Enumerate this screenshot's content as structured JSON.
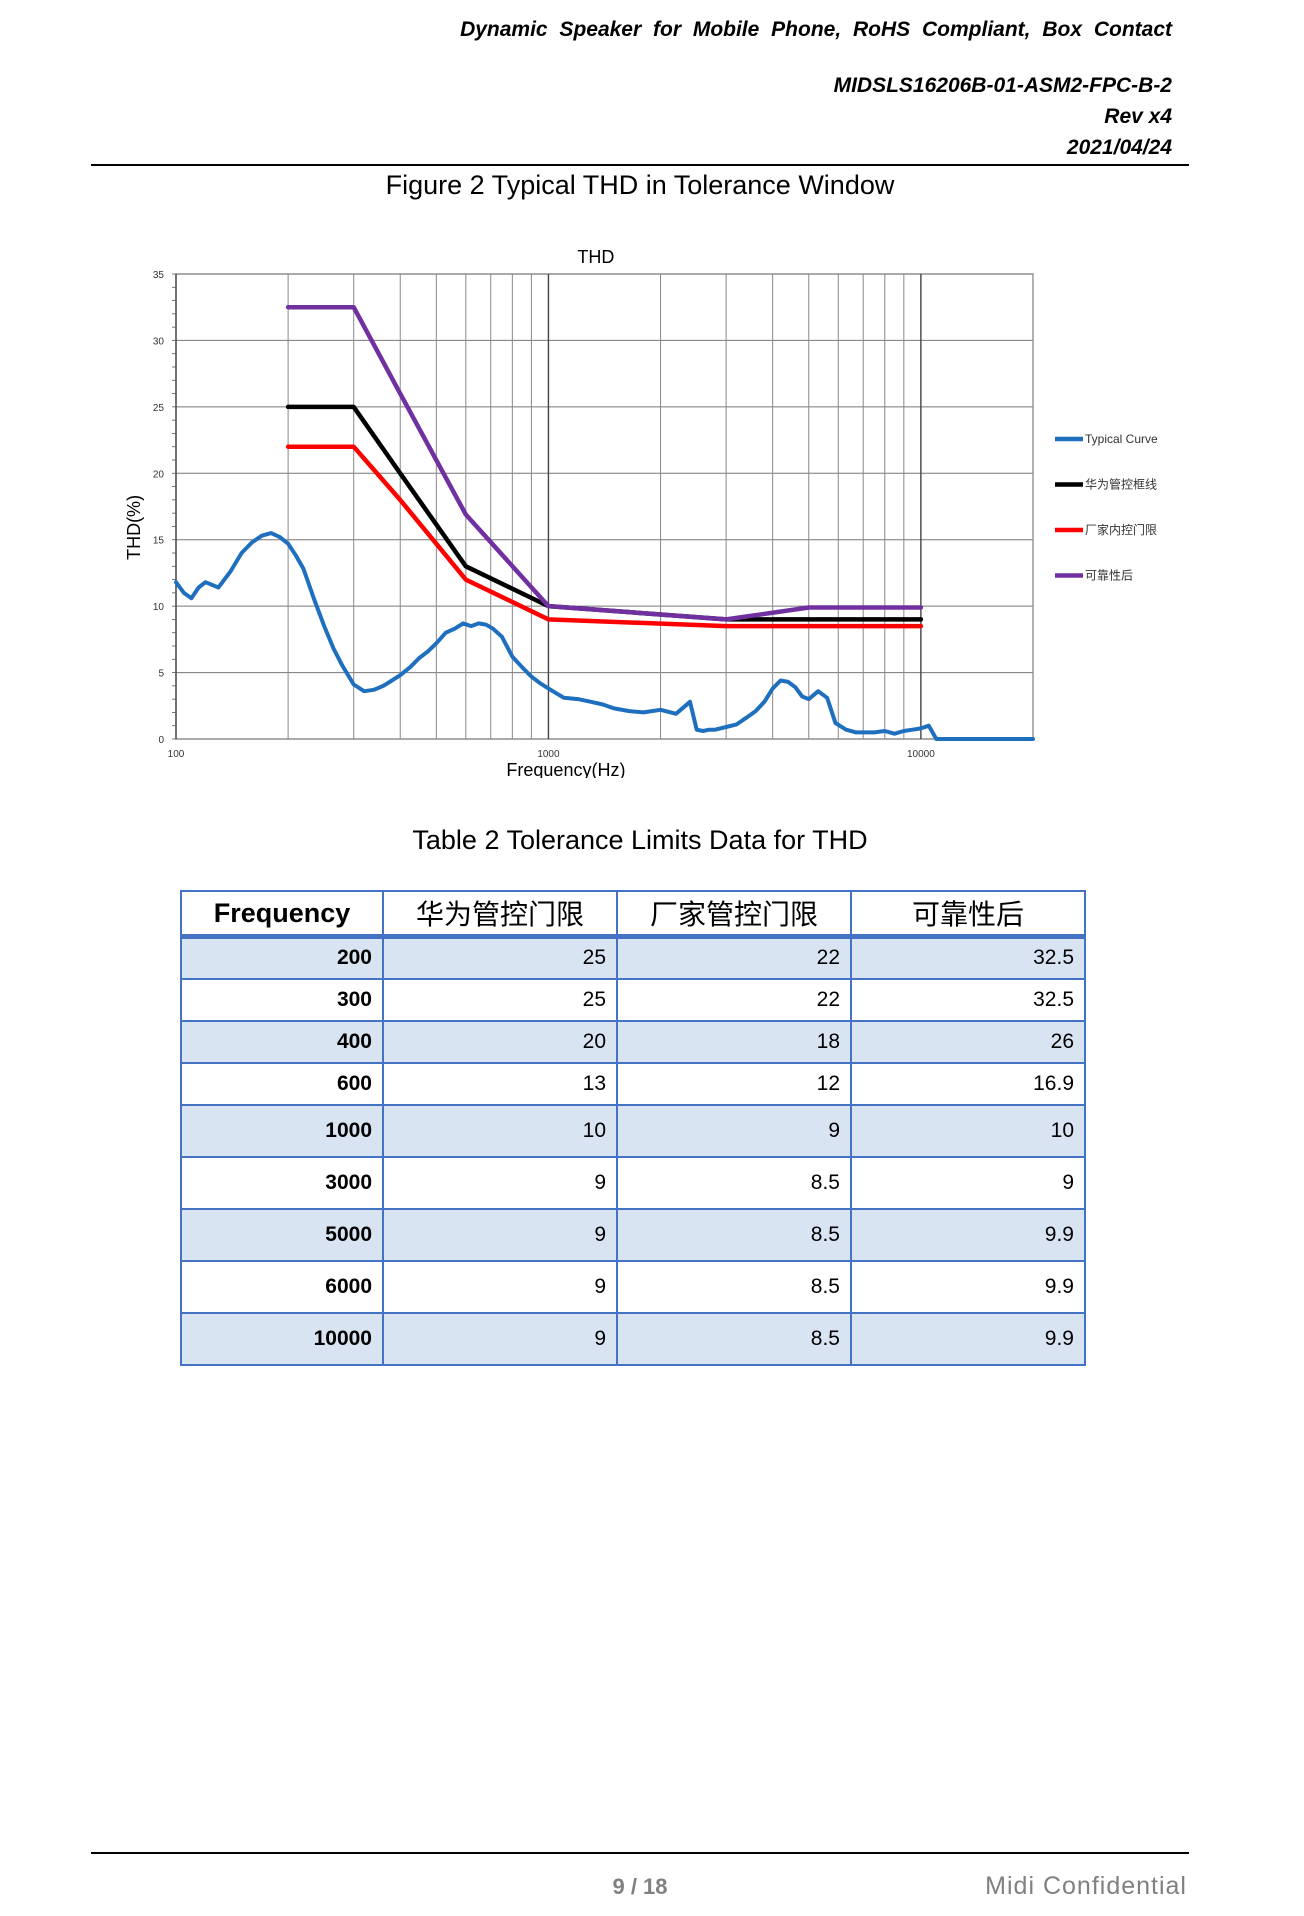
{
  "header": {
    "product": "Dynamic Speaker for Mobile Phone, RoHS Compliant, Box Contact",
    "part_number": "MIDSLS16206B-01-ASM2-FPC-B-2",
    "revision": "Rev x4",
    "date": "2021/04/24"
  },
  "figure_caption": "Figure 2 Typical THD in Tolerance Window",
  "chart_data": {
    "type": "line",
    "title": "THD",
    "xlabel": "Frequency(Hz)",
    "ylabel": "THD(%)",
    "x_scale": "log",
    "xlim": [
      100,
      20000
    ],
    "ylim": [
      0,
      35
    ],
    "x_tick_labels": [
      "100",
      "1000",
      "10000"
    ],
    "y_tick_labels": [
      "0",
      "5",
      "10",
      "15",
      "20",
      "25",
      "30",
      "35"
    ],
    "grid": true,
    "legend_position": "right",
    "series": [
      {
        "name": "Typical Curve",
        "color": "#1f6fbf",
        "x": [
          100,
          105,
          110,
          115,
          120,
          130,
          140,
          150,
          160,
          170,
          180,
          190,
          200,
          210,
          220,
          235,
          250,
          265,
          280,
          300,
          320,
          340,
          360,
          380,
          400,
          425,
          450,
          475,
          500,
          530,
          560,
          590,
          620,
          650,
          680,
          710,
          750,
          800,
          850,
          900,
          950,
          1000,
          1100,
          1200,
          1300,
          1400,
          1500,
          1650,
          1800,
          2000,
          2200,
          2400,
          2500,
          2600,
          2700,
          2800,
          3000,
          3200,
          3400,
          3600,
          3800,
          4000,
          4200,
          4400,
          4600,
          4800,
          5000,
          5300,
          5600,
          5900,
          6300,
          6700,
          7000,
          7500,
          8000,
          8500,
          9000,
          9500,
          10000,
          10500,
          11000,
          12000,
          14000,
          17000,
          20000
        ],
        "y": [
          11.8,
          11,
          10.6,
          11.4,
          11.8,
          11.4,
          12.6,
          14,
          14.8,
          15.3,
          15.5,
          15.2,
          14.7,
          13.8,
          12.8,
          10.5,
          8.5,
          6.8,
          5.5,
          4.1,
          3.6,
          3.7,
          4,
          4.4,
          4.8,
          5.4,
          6.1,
          6.6,
          7.2,
          8,
          8.3,
          8.7,
          8.5,
          8.7,
          8.6,
          8.3,
          7.7,
          6.2,
          5.4,
          4.7,
          4.2,
          3.8,
          3.1,
          3,
          2.8,
          2.6,
          2.3,
          2.1,
          2,
          2.2,
          1.9,
          2.8,
          0.7,
          0.6,
          0.7,
          0.7,
          0.9,
          1.1,
          1.6,
          2.1,
          2.8,
          3.8,
          4.4,
          4.3,
          3.9,
          3.2,
          3,
          3.6,
          3.1,
          1.2,
          0.7,
          0.5,
          0.5,
          0.5,
          0.6,
          0.4,
          0.6,
          0.7,
          0.8,
          1,
          0,
          0,
          0,
          0,
          0
        ]
      },
      {
        "name": "华为管控框线",
        "color": "#000000",
        "x": [
          200,
          300,
          400,
          600,
          1000,
          3000,
          5000,
          6000,
          10000
        ],
        "y": [
          25,
          25,
          20,
          13,
          10,
          9,
          9,
          9,
          9
        ]
      },
      {
        "name": "厂家内控门限",
        "color": "#ff0000",
        "x": [
          200,
          300,
          400,
          600,
          1000,
          3000,
          5000,
          6000,
          10000
        ],
        "y": [
          22,
          22,
          18,
          12,
          9,
          8.5,
          8.5,
          8.5,
          8.5
        ]
      },
      {
        "name": "可靠性后",
        "color": "#7030a0",
        "x": [
          200,
          300,
          400,
          600,
          1000,
          3000,
          5000,
          6000,
          10000
        ],
        "y": [
          32.5,
          32.5,
          26,
          16.9,
          10,
          9,
          9.9,
          9.9,
          9.9
        ]
      }
    ]
  },
  "table_caption": "Table 2 Tolerance Limits Data for THD",
  "table": {
    "headers": [
      "Frequency",
      "华为管控门限",
      "厂家管控门限",
      "可靠性后"
    ],
    "rows": [
      [
        "200",
        "25",
        "22",
        "32.5"
      ],
      [
        "300",
        "25",
        "22",
        "32.5"
      ],
      [
        "400",
        "20",
        "18",
        "26"
      ],
      [
        "600",
        "13",
        "12",
        "16.9"
      ],
      [
        "1000",
        "10",
        "9",
        "10"
      ],
      [
        "3000",
        "9",
        "8.5",
        "9"
      ],
      [
        "5000",
        "9",
        "8.5",
        "9.9"
      ],
      [
        "6000",
        "9",
        "8.5",
        "9.9"
      ],
      [
        "10000",
        "9",
        "8.5",
        "9.9"
      ]
    ],
    "border_color": "#4472c4",
    "band_color": "#d9e4f3"
  },
  "footer": {
    "page": "9 / 18",
    "confidential": "Midi Confidential"
  }
}
